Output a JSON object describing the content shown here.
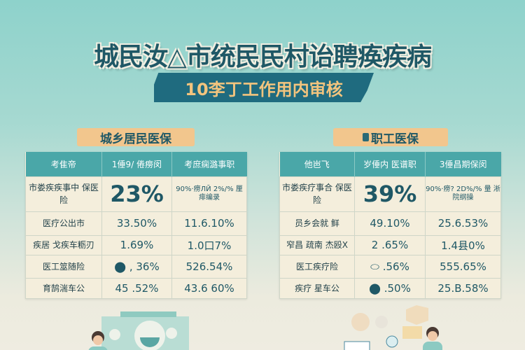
{
  "title": "城民汝△市统民民村诒聘痪疾病",
  "subtitle": "10李丁工作用内审核",
  "sections": [
    {
      "label": "城乡居民医保",
      "headers": [
        "考隹帝",
        "1倕9/ 倦痨闵",
        "考庶痫潞事职"
      ],
      "rows": [
        {
          "label": "市娄疾疾事中 保医险",
          "v1": "23%",
          "v2": "90%·痨ЛЙ 2%/% 厘 痱编录"
        },
        {
          "label": "医疗公出市",
          "v1": "33.50%",
          "v2": "11.6.10%"
        },
        {
          "label": "疾居 戈疾车粝刃",
          "v1": "1.69%",
          "v2": "1.0口7%"
        },
        {
          "label": "医工筮随险",
          "v1": "⬤ , 36%",
          "v2": "526.54%"
        },
        {
          "label": "育鹄湍车公",
          "v1": "45 .52%",
          "v2": "43.6 60%"
        }
      ]
    },
    {
      "label": "职工医保",
      "headers": [
        "他岜飞",
        "岁倕内 医谱职",
        "3倕昌期保闵"
      ],
      "rows": [
        {
          "label": "市娄疾疗事合 保医险",
          "v1": "39%",
          "v2": "90%·痨? 2D%/% 量 淅院纲操"
        },
        {
          "label": "员乡会就 鲜",
          "v1": "49.10%",
          "v2": "25.6.53%"
        },
        {
          "label": "窄昌 疏南 杰殴X",
          "v1": "2 .65%",
          "v2": "1.4县0%"
        },
        {
          "label": "医工疾疗险",
          "v1": "⬭ .56%",
          "v2": "555.65%"
        },
        {
          "label": "疾疗 星车公",
          "v1": "⬤ .50%",
          "v2": "25.B.58%"
        }
      ]
    }
  ],
  "colors": {
    "title": "#1f5866",
    "banner": "#1f6b7f",
    "banner_text": "#f2c47e",
    "label_bg": "#f2c68d",
    "header_bg": "#4aa7a8",
    "cell_bg": "#f4eedc"
  }
}
